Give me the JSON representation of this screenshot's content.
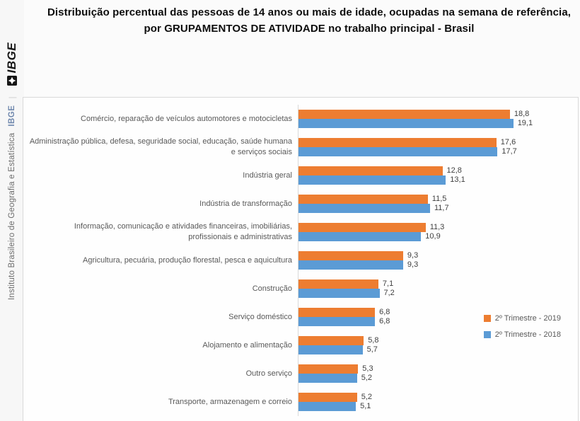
{
  "header": {
    "title": "Distribuição percentual das pessoas de 14 anos ou mais de idade, ocupadas na semana de referência, por GRUPAMENTOS DE ATIVIDADE no trabalho principal - Brasil"
  },
  "sidebar": {
    "org_full": "Instituto Brasileiro de Geografia e Estatística",
    "org_abbr": "IBGE",
    "separator": "|",
    "logo_label": "IBGE",
    "logo_icon": "ibge-flag-icon",
    "org_abbr_color": "#7189ae"
  },
  "chart_data": {
    "type": "bar",
    "orientation": "horizontal",
    "categories": [
      "Comércio, reparação de veículos automotores e motocicletas",
      "Administração pública, defesa, seguridade social, educação, saúde humana e serviços sociais",
      "Indústria geral",
      "Indústria de transformação",
      "Informação, comunicação e atividades financeiras, imobiliárias, profissionais e administrativas",
      "Agricultura, pecuária, produção florestal, pesca e aquicultura",
      "Construção",
      "Serviço doméstico",
      "Alojamento e alimentação",
      "Outro serviço",
      "Transporte, armazenagem e correio"
    ],
    "series": [
      {
        "name": "2º Trimestre - 2019",
        "color": "#ED7D31",
        "values": [
          18.8,
          17.6,
          12.8,
          11.5,
          11.3,
          9.3,
          7.1,
          6.8,
          5.8,
          5.3,
          5.2
        ],
        "value_labels": [
          "18,8",
          "17,6",
          "12,8",
          "11,5",
          "11,3",
          "9,3",
          "7,1",
          "6,8",
          "5,8",
          "5,3",
          "5,2"
        ]
      },
      {
        "name": "2º Trimestre - 2018",
        "color": "#5B9BD5",
        "values": [
          19.1,
          17.7,
          13.1,
          11.7,
          10.9,
          9.3,
          7.2,
          6.8,
          5.7,
          5.2,
          5.1
        ],
        "value_labels": [
          "19,1",
          "17,7",
          "13,1",
          "11,7",
          "10,9",
          "9,3",
          "7,2",
          "6,8",
          "5,7",
          "5,2",
          "5,1"
        ]
      }
    ],
    "xlim": [
      0,
      20
    ],
    "value_format": "comma-decimal",
    "gridlines": false,
    "legend_position": "right-middle"
  }
}
